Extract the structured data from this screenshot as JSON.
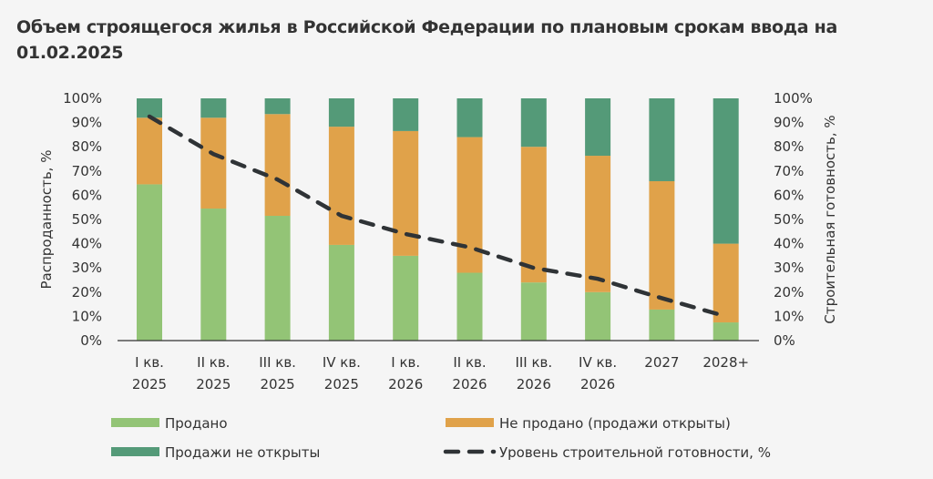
{
  "chart_data": {
    "type": "bar",
    "stacked": true,
    "title": "Объем строящегося жилья в Российской Федерации по плановым срокам ввода на 01.02.2025",
    "categories": [
      [
        "I кв.",
        "2025"
      ],
      [
        "II кв.",
        "2025"
      ],
      [
        "III кв.",
        "2025"
      ],
      [
        "IV кв.",
        "2025"
      ],
      [
        "I кв.",
        "2026"
      ],
      [
        "II кв.",
        "2026"
      ],
      [
        "III кв.",
        "2026"
      ],
      [
        "IV кв.",
        "2026"
      ],
      [
        "2027"
      ],
      [
        "2028+"
      ]
    ],
    "ylabel": "Распроданность, %",
    "y2label": "Строительная готовность, %",
    "ylim": [
      0,
      100
    ],
    "y2lim": [
      0,
      100
    ],
    "yticks": [
      "0%",
      "10%",
      "20%",
      "30%",
      "40%",
      "50%",
      "60%",
      "70%",
      "80%",
      "90%",
      "100%"
    ],
    "series": [
      {
        "name": "Продано",
        "type": "bar",
        "color": "#93c476",
        "values": [
          64.5,
          54.5,
          51.5,
          39.5,
          35,
          28,
          24,
          20,
          12.8,
          7.5
        ]
      },
      {
        "name": "Не продано (продажи открыты)",
        "type": "bar",
        "color": "#e0a24a",
        "values": [
          27.5,
          37.5,
          42,
          48.8,
          51.5,
          56,
          56,
          56.3,
          53,
          32.5
        ]
      },
      {
        "name": "Продажи не открыты",
        "type": "bar",
        "color": "#549a78",
        "values": [
          8,
          8,
          6.5,
          11.7,
          13.5,
          16,
          20,
          23.7,
          34.2,
          60
        ]
      },
      {
        "name": "Уровень строительной готовности, %",
        "type": "line",
        "style": "dashed",
        "axis": "right",
        "color": "#2f3336",
        "values": [
          92.5,
          77,
          66.5,
          51.5,
          44,
          38.5,
          30,
          25.5,
          17.5,
          10
        ]
      }
    ],
    "legend_position": "bottom",
    "grid": false
  }
}
